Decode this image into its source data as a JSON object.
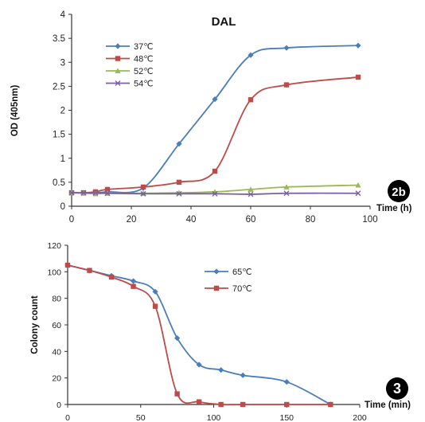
{
  "chart_data": [
    {
      "type": "line",
      "badge": "2b",
      "title": "DAL",
      "xlabel": "Time (h)",
      "ylabel": "OD (405nm)",
      "xlim": [
        0,
        100
      ],
      "ylim": [
        0,
        4
      ],
      "xticks": [
        0,
        20,
        40,
        60,
        80,
        100
      ],
      "yticks": [
        0,
        0.5,
        1,
        1.5,
        2,
        2.5,
        3,
        3.5,
        4
      ],
      "ytick_labels": [
        "0",
        "0.5",
        "1",
        "1.5",
        "2",
        "2.5",
        "3",
        "3.5",
        "4"
      ],
      "grid": false,
      "legend_position": "top-left",
      "series": [
        {
          "name": "37℃",
          "color": "#4a7ebb",
          "marker": "diamond",
          "x": [
            0,
            4,
            8,
            12,
            24,
            36,
            48,
            60,
            72,
            96
          ],
          "y": [
            0.28,
            0.28,
            0.28,
            0.3,
            0.38,
            1.3,
            2.23,
            3.15,
            3.3,
            3.35
          ]
        },
        {
          "name": "48℃",
          "color": "#be4b48",
          "marker": "square",
          "x": [
            0,
            4,
            8,
            12,
            24,
            36,
            48,
            60,
            72,
            96
          ],
          "y": [
            0.28,
            0.28,
            0.3,
            0.35,
            0.4,
            0.5,
            0.73,
            2.22,
            2.53,
            2.69
          ]
        },
        {
          "name": "52℃",
          "color": "#98b954",
          "marker": "triangle",
          "x": [
            0,
            4,
            8,
            12,
            24,
            36,
            48,
            60,
            72,
            96
          ],
          "y": [
            0.28,
            0.27,
            0.26,
            0.27,
            0.27,
            0.28,
            0.3,
            0.35,
            0.4,
            0.44
          ]
        },
        {
          "name": "54℃",
          "color": "#7d60a0",
          "marker": "x",
          "x": [
            0,
            4,
            8,
            12,
            24,
            36,
            48,
            60,
            72,
            96
          ],
          "y": [
            0.28,
            0.28,
            0.28,
            0.27,
            0.26,
            0.26,
            0.26,
            0.25,
            0.27,
            0.27
          ]
        }
      ]
    },
    {
      "type": "line",
      "badge": "3",
      "xlabel": "Time (min)",
      "ylabel": "Colony count",
      "xlim": [
        0,
        200
      ],
      "ylim": [
        0,
        120
      ],
      "xticks": [
        0,
        50,
        100,
        150,
        200
      ],
      "yticks": [
        0,
        20,
        40,
        60,
        80,
        100,
        120
      ],
      "ytick_labels": [
        "0",
        "20",
        "40",
        "60",
        "80",
        "100",
        "120"
      ],
      "grid": false,
      "legend_position": "top-center",
      "series": [
        {
          "name": "65℃",
          "color": "#4a7ebb",
          "marker": "diamond",
          "x": [
            0,
            15,
            30,
            45,
            60,
            75,
            90,
            105,
            120,
            150,
            180
          ],
          "y": [
            105,
            101,
            97,
            93,
            85,
            50,
            30,
            26,
            22,
            17,
            0
          ]
        },
        {
          "name": "70℃",
          "color": "#be4b48",
          "marker": "square",
          "x": [
            0,
            15,
            30,
            45,
            60,
            75,
            90,
            105,
            120,
            150,
            180
          ],
          "y": [
            105,
            101,
            96,
            89,
            74,
            8,
            2,
            0,
            0,
            0,
            0
          ]
        }
      ]
    }
  ]
}
